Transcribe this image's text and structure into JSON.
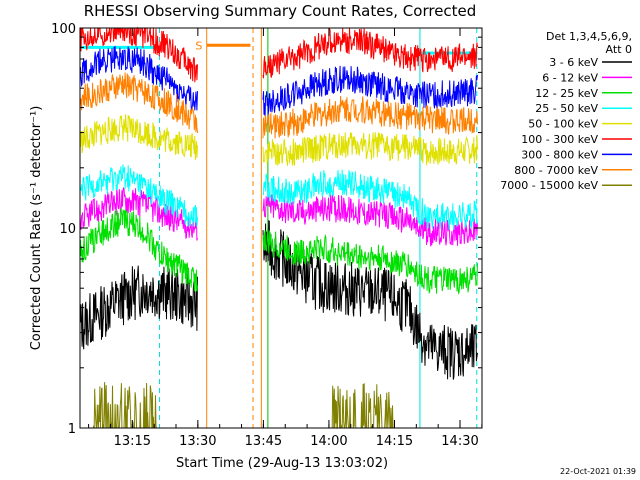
{
  "chart_data": {
    "type": "line",
    "title": "RHESSI Observing Summary Count Rates, Corrected",
    "xlabel": "Start Time (29-Aug-13 13:03:02)",
    "ylabel": "Corrected Count Rate (s⁻¹ detector⁻¹)",
    "x_unit": "minutes after 13:03:02",
    "xlim": [
      0,
      92
    ],
    "ylim": [
      1,
      100
    ],
    "y_scale": "log",
    "x_ticks": [
      "13:15",
      "13:30",
      "13:45",
      "14:00",
      "14:15",
      "14:30"
    ],
    "y_ticks": [
      "1",
      "10",
      "100"
    ],
    "grid": false,
    "legend_position": "right",
    "legend_header": [
      "Det 1,3,4,5,6,9,",
      "Att 0"
    ],
    "timestamp": "22-Oct-2021 01:39",
    "annotations": [
      {
        "text": "S",
        "x": 27.2,
        "y": 78,
        "color": "#ff8000"
      }
    ],
    "gaps": [
      [
        27.0,
        41.8
      ]
    ],
    "vertical_lines": [
      {
        "x": 0.0,
        "color": "#00e0e0",
        "style": "solid"
      },
      {
        "x": 18.2,
        "color": "#00e0e0",
        "style": "dashed"
      },
      {
        "x": 29.0,
        "color": "#ff8000",
        "style": "solid"
      },
      {
        "x": 39.6,
        "color": "#ff8000",
        "style": "dashed"
      },
      {
        "x": 41.5,
        "color": "#ff8000",
        "style": "solid"
      },
      {
        "x": 43.0,
        "color": "#00c000",
        "style": "solid"
      },
      {
        "x": 77.8,
        "color": "#00e0e0",
        "style": "solid"
      },
      {
        "x": 90.8,
        "color": "#00e0e0",
        "style": "dashed"
      }
    ],
    "segments": [
      {
        "x": [
          0.0,
          18.2
        ],
        "y": 80,
        "color": "#00ffff"
      },
      {
        "x": [
          29.0,
          39.0
        ],
        "y": 82,
        "color": "#ff8000"
      },
      {
        "x": [
          77.8,
          91.0
        ],
        "y": 75,
        "color": "#00ffff"
      }
    ],
    "series": [
      {
        "name": "3 - 6 keV",
        "color": "#000000",
        "x": [
          0,
          5,
          10,
          15,
          18,
          22,
          24,
          27,
          43,
          50,
          55,
          60,
          65,
          70,
          75,
          77,
          80,
          85,
          90,
          91
        ],
        "y": [
          3.2,
          3.8,
          4.5,
          5.0,
          4.8,
          4.6,
          4.4,
          4.2,
          8.0,
          6.0,
          5.2,
          5.0,
          4.8,
          4.6,
          4.0,
          3.2,
          2.5,
          2.4,
          2.4,
          2.5
        ]
      },
      {
        "name": "6 - 12 keV",
        "color": "#ff00ff",
        "x": [
          0,
          5,
          10,
          15,
          18,
          22,
          24,
          27,
          43,
          50,
          55,
          60,
          65,
          70,
          75,
          77,
          80,
          85,
          90,
          91
        ],
        "y": [
          11,
          12.5,
          14,
          13,
          12,
          11,
          10.5,
          10,
          13,
          12,
          12.5,
          12.5,
          12,
          11.5,
          11,
          10,
          9.5,
          9.5,
          9.5,
          10
        ]
      },
      {
        "name": "12 - 25 keV",
        "color": "#00e000",
        "x": [
          0,
          5,
          10,
          15,
          18,
          22,
          24,
          27,
          43,
          50,
          55,
          60,
          65,
          70,
          75,
          77,
          80,
          85,
          90,
          91
        ],
        "y": [
          7.5,
          9.5,
          11,
          9.5,
          7.5,
          6.5,
          6.0,
          5.5,
          8.5,
          7.5,
          8.0,
          7.5,
          7.2,
          7.0,
          6.5,
          6.0,
          5.5,
          5.5,
          5.6,
          5.8
        ]
      },
      {
        "name": "25 - 50 keV",
        "color": "#00ffff",
        "x": [
          0,
          5,
          10,
          15,
          18,
          22,
          24,
          27,
          43,
          50,
          55,
          60,
          65,
          70,
          75,
          77,
          80,
          85,
          90,
          91
        ],
        "y": [
          15,
          17,
          18,
          16,
          14,
          13,
          12,
          11.5,
          16,
          15,
          16.5,
          17,
          16,
          15,
          14,
          12.5,
          11.5,
          11.5,
          11.5,
          12
        ]
      },
      {
        "name": "50 - 100 keV",
        "color": "#e0e000",
        "x": [
          0,
          5,
          10,
          15,
          18,
          22,
          24,
          27,
          43,
          50,
          55,
          60,
          65,
          70,
          75,
          77,
          80,
          85,
          90,
          91
        ],
        "y": [
          27,
          30,
          32,
          30,
          28,
          27,
          26,
          25,
          24,
          24,
          25,
          26,
          26,
          25.5,
          25,
          24.5,
          24,
          24,
          24.5,
          25
        ]
      },
      {
        "name": "100 - 300 keV",
        "color": "#ff0000",
        "x": [
          0,
          5,
          10,
          15,
          18,
          22,
          24,
          27,
          43,
          50,
          55,
          60,
          65,
          70,
          75,
          77,
          80,
          85,
          90,
          91
        ],
        "y": [
          88,
          95,
          98,
          92,
          85,
          75,
          68,
          60,
          65,
          72,
          82,
          88,
          85,
          78,
          72,
          70,
          70,
          70,
          72,
          75
        ]
      },
      {
        "name": "300 - 800 keV",
        "color": "#0000ff",
        "x": [
          0,
          5,
          10,
          15,
          18,
          22,
          24,
          27,
          43,
          50,
          55,
          60,
          65,
          70,
          75,
          77,
          80,
          85,
          90,
          91
        ],
        "y": [
          60,
          68,
          72,
          66,
          58,
          50,
          46,
          42,
          42,
          48,
          53,
          56,
          54,
          50,
          48,
          46,
          46,
          47,
          48,
          50
        ]
      },
      {
        "name": "800 - 7000 keV",
        "color": "#ff8000",
        "x": [
          0,
          5,
          10,
          15,
          18,
          22,
          24,
          27,
          43,
          50,
          55,
          60,
          65,
          70,
          75,
          77,
          80,
          85,
          90,
          91
        ],
        "y": [
          44,
          48,
          52,
          48,
          44,
          40,
          37,
          34,
          32,
          34,
          37,
          40,
          39,
          37,
          36,
          35,
          35,
          34,
          35,
          36
        ]
      },
      {
        "name": "7000 - 15000 keV",
        "color": "#808000",
        "x": [
          0,
          3,
          8,
          13,
          18,
          22,
          24,
          27,
          43,
          50,
          55,
          60,
          65,
          70,
          75,
          77,
          80,
          85,
          90,
          91
        ],
        "y": [
          1.0,
          1.0,
          1.5,
          1.5,
          1.5,
          1.0,
          1.0,
          1.0,
          1.0,
          1.0,
          1.0,
          1.6,
          1.6,
          1.5,
          1.0,
          1.0,
          1.0,
          1.0,
          1.0,
          1.0
        ]
      }
    ]
  }
}
